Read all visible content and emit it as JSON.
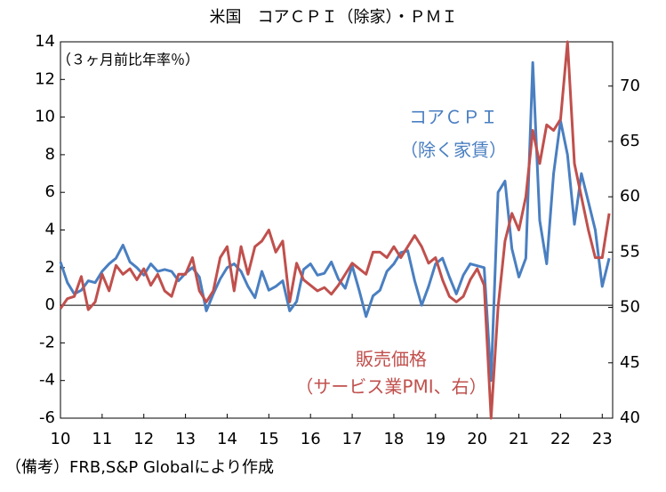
{
  "chart_data": {
    "type": "line",
    "title": "米国　コアＣＰＩ（除家）・ＰＭＩ",
    "subtitle": "（３ヶ月前比年率％）",
    "note": "（備考）FRB,S&P Globalにより作成",
    "annotations": [
      "コアＣＰＩ",
      "（除く家賃）",
      "販売価格",
      "（サービス業PMI、右）"
    ],
    "x": [
      2010,
      2010.167,
      2010.333,
      2010.5,
      2010.667,
      2010.833,
      2011,
      2011.167,
      2011.333,
      2011.5,
      2011.667,
      2011.833,
      2012,
      2012.167,
      2012.333,
      2012.5,
      2012.667,
      2012.833,
      2013,
      2013.167,
      2013.333,
      2013.5,
      2013.667,
      2013.833,
      2014,
      2014.167,
      2014.333,
      2014.5,
      2014.667,
      2014.833,
      2015,
      2015.167,
      2015.333,
      2015.5,
      2015.667,
      2015.833,
      2016,
      2016.167,
      2016.333,
      2016.5,
      2016.667,
      2016.833,
      2017,
      2017.167,
      2017.333,
      2017.5,
      2017.667,
      2017.833,
      2018,
      2018.167,
      2018.333,
      2018.5,
      2018.667,
      2018.833,
      2019,
      2019.167,
      2019.333,
      2019.5,
      2019.667,
      2019.833,
      2020,
      2020.167,
      2020.333,
      2020.5,
      2020.667,
      2020.833,
      2021,
      2021.167,
      2021.333,
      2021.5,
      2021.667,
      2021.833,
      2022,
      2022.167,
      2022.333,
      2022.5,
      2022.667,
      2022.833,
      2023,
      2023.167
    ],
    "xlim": [
      2010,
      2023.25
    ],
    "xticks": [
      {
        "value": 2010,
        "label": "10"
      },
      {
        "value": 2011,
        "label": "11"
      },
      {
        "value": 2012,
        "label": "12"
      },
      {
        "value": 2013,
        "label": "13"
      },
      {
        "value": 2014,
        "label": "14"
      },
      {
        "value": 2015,
        "label": "15"
      },
      {
        "value": 2016,
        "label": "16"
      },
      {
        "value": 2017,
        "label": "17"
      },
      {
        "value": 2018,
        "label": "18"
      },
      {
        "value": 2019,
        "label": "19"
      },
      {
        "value": 2020,
        "label": "20"
      },
      {
        "value": 2021,
        "label": "21"
      },
      {
        "value": 2022,
        "label": "22"
      },
      {
        "value": 2023,
        "label": "23"
      }
    ],
    "ylim": [
      -6,
      14
    ],
    "yticks": [
      -6,
      -4,
      -2,
      0,
      2,
      4,
      6,
      8,
      10,
      12,
      14
    ],
    "y2lim": [
      40,
      74
    ],
    "y2ticks": [
      40,
      45,
      50,
      55,
      60,
      65,
      70
    ],
    "series": [
      {
        "name": "コアＣＰＩ（除く家賃）",
        "color": "#4a7fc1",
        "values": [
          2.3,
          1.2,
          0.6,
          0.8,
          1.3,
          1.2,
          1.8,
          2.2,
          2.5,
          3.2,
          2.3,
          2.0,
          1.6,
          2.2,
          1.8,
          1.9,
          1.8,
          1.3,
          1.7,
          2.0,
          1.5,
          -0.3,
          0.6,
          1.4,
          2.0,
          2.2,
          1.8,
          1.0,
          0.4,
          1.8,
          0.8,
          1.0,
          1.3,
          -0.3,
          0.2,
          1.9,
          2.2,
          1.6,
          1.7,
          2.3,
          1.4,
          0.9,
          2.1,
          0.8,
          -0.6,
          0.5,
          0.8,
          1.8,
          2.2,
          2.8,
          2.9,
          1.3,
          0.0,
          1.0,
          2.2,
          2.5,
          1.5,
          0.6,
          1.6,
          2.2,
          2.1,
          2.0,
          -4.0,
          6.0,
          6.6,
          3.0,
          1.5,
          2.5,
          12.9,
          4.5,
          2.2,
          7.0,
          9.8,
          8.0,
          4.3,
          7.0,
          5.5,
          4.0,
          1.0,
          2.5
        ]
      },
      {
        "name": "販売価格（サービス業PMI、右）",
        "color": "#c0504d",
        "axis": "y2",
        "values": [
          49.9,
          50.8,
          51.0,
          52.8,
          49.8,
          50.5,
          53.0,
          51.5,
          53.8,
          53.0,
          53.5,
          52.5,
          53.5,
          52.0,
          53.0,
          51.5,
          51.0,
          53.0,
          53.0,
          54.5,
          51.5,
          50.5,
          51.5,
          54.5,
          55.5,
          51.5,
          55.5,
          53.0,
          55.5,
          56.0,
          57.0,
          55.0,
          56.0,
          50.5,
          54.0,
          52.5,
          52.0,
          51.5,
          51.8,
          51.2,
          52.0,
          53.0,
          54.0,
          53.5,
          53.0,
          55.0,
          55.0,
          54.5,
          55.5,
          54.5,
          55.5,
          56.5,
          55.5,
          54.0,
          54.5,
          52.5,
          51.0,
          50.5,
          51.0,
          52.5,
          53.5,
          52.0,
          40.0,
          50.0,
          56.0,
          58.5,
          57.0,
          60.0,
          66.0,
          63.0,
          66.5,
          66.0,
          67.0,
          74.0,
          63.0,
          60.0,
          57.0,
          54.5,
          54.5,
          58.5
        ]
      }
    ]
  }
}
